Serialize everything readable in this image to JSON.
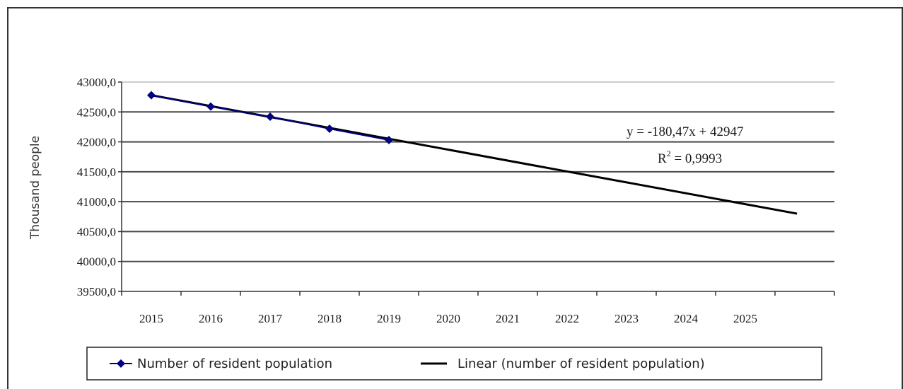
{
  "chart_data": {
    "type": "line",
    "title": "",
    "xlabel": "",
    "ylabel": "Thousand people",
    "categories": [
      "2015",
      "2016",
      "2017",
      "2018",
      "2019",
      "2020",
      "2021",
      "2022",
      "2023",
      "2024",
      "2025"
    ],
    "ylim": [
      39500,
      43000
    ],
    "yticks": [
      "43000,0",
      "42500,0",
      "42000,0",
      "41500,0",
      "41000,0",
      "40500,0",
      "40000,0",
      "39500,0"
    ],
    "grid": true,
    "series": [
      {
        "name": "Number of resident population",
        "type": "line-markers",
        "color": "#000080",
        "x": [
          "2015",
          "2016",
          "2017",
          "2018",
          "2019"
        ],
        "values": [
          42780,
          42590,
          42420,
          42220,
          42030
        ]
      },
      {
        "name": "Linear (number of resident population)",
        "type": "trendline",
        "color": "#000000",
        "x_start": "2015",
        "y_start": 42780,
        "x_end": "2026",
        "y_end": 40800
      }
    ],
    "annotations": [
      "y = -180,47x + 42947",
      "R",
      "2",
      " = 0,9993"
    ],
    "legend_position": "bottom"
  }
}
